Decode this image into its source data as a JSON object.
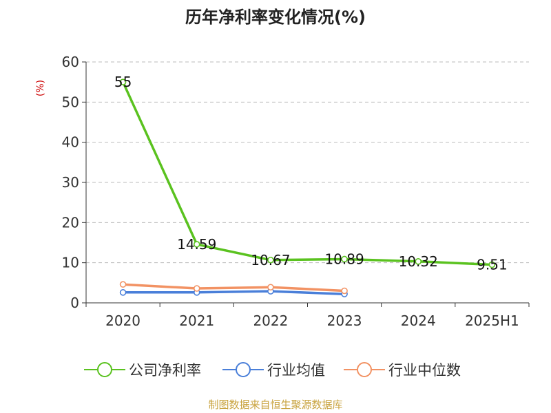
{
  "chart_data": {
    "type": "line",
    "title": "历年净利率变化情况(%)",
    "ylabel": "(%)",
    "xlabel": "",
    "categories": [
      "2020",
      "2021",
      "2022",
      "2023",
      "2024",
      "2025H1"
    ],
    "ylim": [
      0,
      60
    ],
    "yticks": [
      0,
      10,
      20,
      30,
      40,
      50,
      60
    ],
    "grid": true,
    "legend_position": "bottom",
    "series": [
      {
        "name": "公司净利率",
        "color": "#5ac21f",
        "values": [
          55,
          14.59,
          10.67,
          10.89,
          10.32,
          9.51
        ],
        "labels": [
          "55",
          "14.59",
          "10.67",
          "10.89",
          "10.32",
          "9.51"
        ],
        "show_labels": true
      },
      {
        "name": "行业均值",
        "color": "#4a7fd9",
        "values": [
          2.6,
          2.6,
          2.9,
          2.2,
          null,
          null
        ],
        "show_labels": false
      },
      {
        "name": "行业中位数",
        "color": "#f29263",
        "values": [
          4.6,
          3.6,
          3.9,
          3.0,
          null,
          null
        ],
        "show_labels": false
      }
    ],
    "source": "制图数据来自恒生聚源数据库"
  }
}
